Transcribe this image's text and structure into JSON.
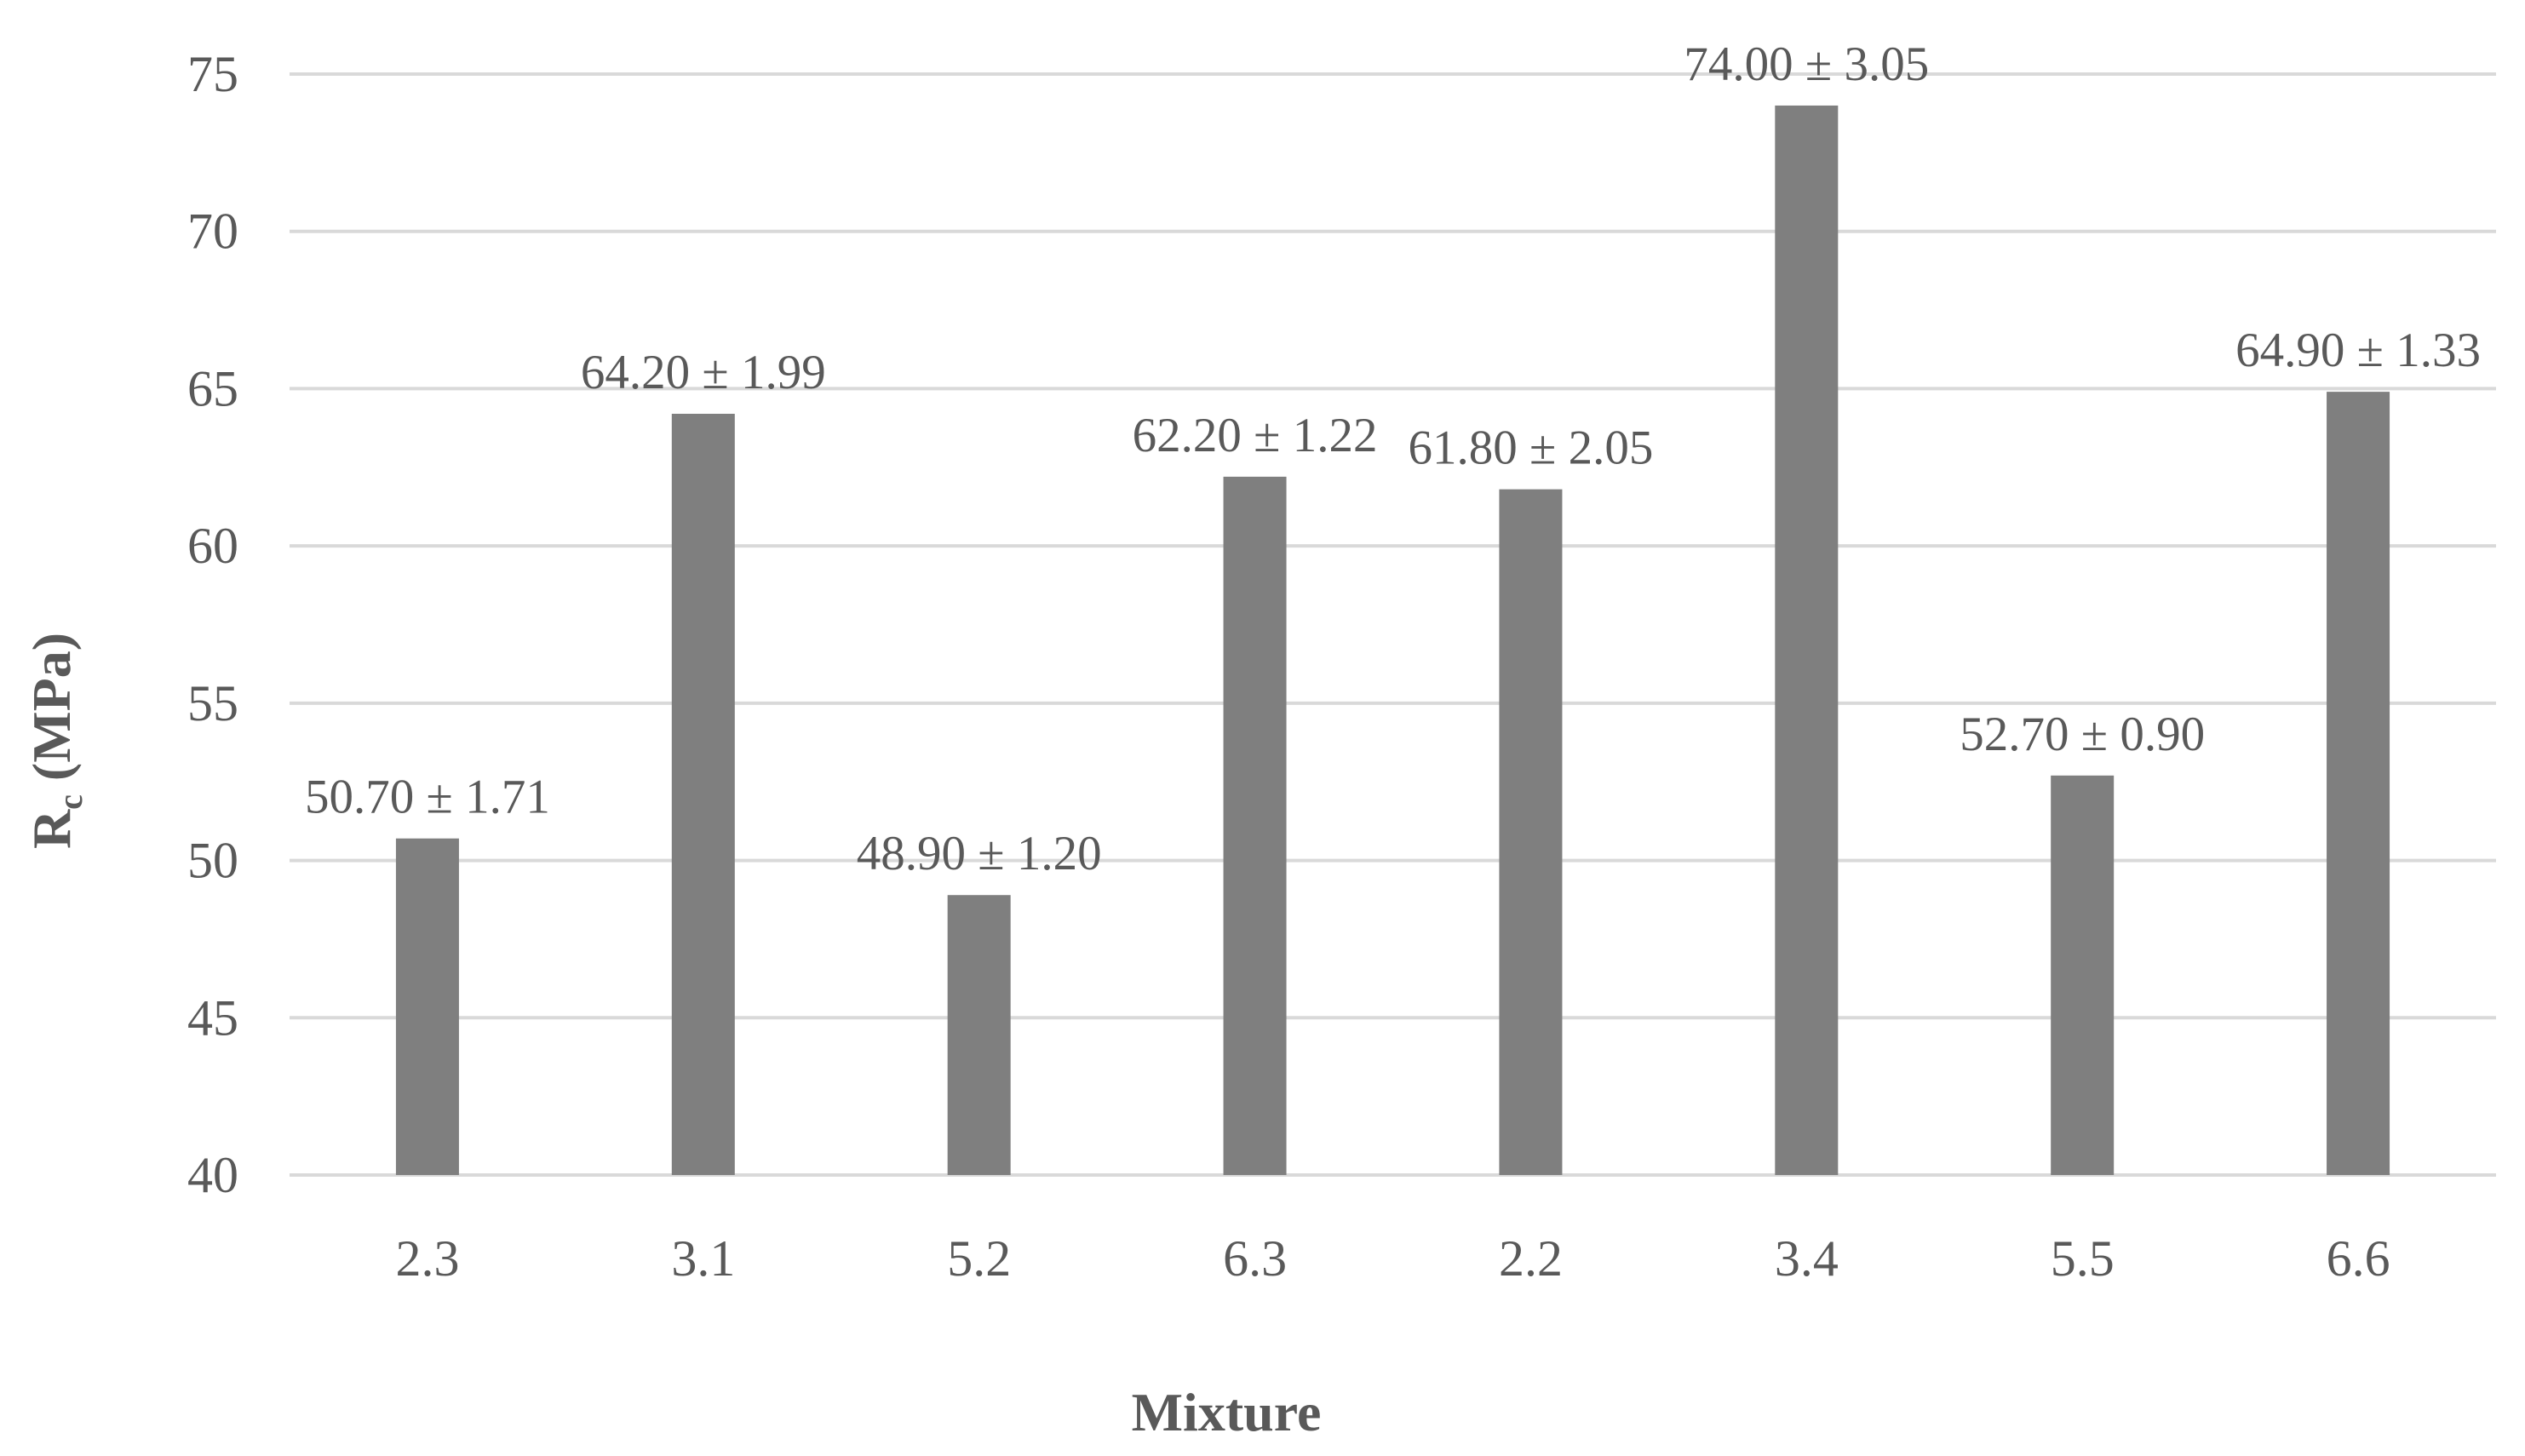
{
  "chart_data": {
    "type": "bar",
    "y_label": {
      "main": "R",
      "sub": "c",
      "unit": "(MPa)"
    },
    "x_label": "Mixture",
    "categories": [
      "2.3",
      "3.1",
      "5.2",
      "6.3",
      "2.2",
      "3.4",
      "5.5",
      "6.6"
    ],
    "values": [
      50.7,
      64.2,
      48.9,
      62.2,
      61.8,
      74.0,
      52.7,
      64.9
    ],
    "value_labels": [
      "50.70 ± 1.71",
      "64.20 ± 1.99",
      "48.90 ± 1.20",
      "62.20 ± 1.22",
      "61.80 ± 2.05",
      "74.00 ± 3.05",
      "52.70 ± 0.90",
      "64.90 ± 1.33"
    ],
    "color": "#7f7f7f",
    "ylim": [
      40,
      75
    ],
    "yticks": [
      40,
      45,
      50,
      55,
      60,
      65,
      70,
      75
    ],
    "grid": true
  }
}
